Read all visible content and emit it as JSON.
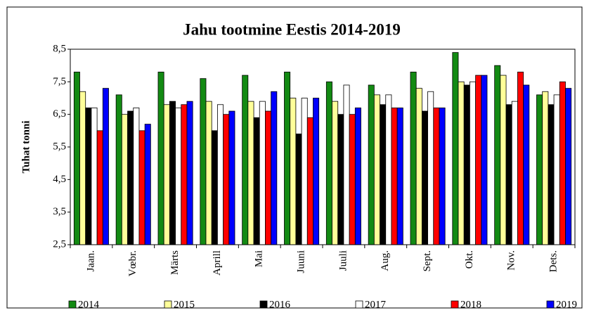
{
  "chart_data": {
    "type": "bar",
    "title": "Jahu tootmine  Eestis 2014-2019",
    "y_label": "Tuhat tonni",
    "categories": [
      "Jaan.",
      "Vœbr.",
      "Märts",
      "Aprill",
      "Mai",
      "Juuni",
      "Juuli",
      "Aug.",
      "Sept.",
      "Okt.",
      "Nov.",
      "Dets."
    ],
    "series": [
      {
        "name": "2014",
        "color": "#138a13",
        "values": [
          7.8,
          7.1,
          7.8,
          7.6,
          7.7,
          7.8,
          7.5,
          7.4,
          7.8,
          8.4,
          8.0,
          7.1
        ]
      },
      {
        "name": "2015",
        "color": "#ffff99",
        "values": [
          7.2,
          6.5,
          6.8,
          6.9,
          6.9,
          7.0,
          6.9,
          7.1,
          7.3,
          7.5,
          7.7,
          7.2
        ]
      },
      {
        "name": "2016",
        "color": "#000000",
        "values": [
          6.7,
          6.6,
          6.9,
          6.0,
          6.4,
          5.9,
          6.5,
          6.8,
          6.6,
          7.4,
          6.8,
          6.8
        ]
      },
      {
        "name": "2017",
        "color": "#ffffff",
        "values": [
          6.7,
          6.7,
          6.7,
          6.8,
          6.9,
          7.0,
          7.4,
          7.1,
          7.2,
          7.5,
          6.9,
          7.1
        ]
      },
      {
        "name": "2018",
        "color": "#ff0000",
        "values": [
          6.0,
          6.0,
          6.8,
          6.5,
          6.6,
          6.4,
          6.5,
          6.7,
          6.7,
          7.7,
          7.8,
          7.5
        ]
      },
      {
        "name": "2019",
        "color": "#0000ff",
        "values": [
          7.3,
          6.2,
          6.9,
          6.6,
          7.2,
          7.0,
          6.7,
          6.7,
          6.7,
          7.7,
          7.4,
          7.3
        ]
      }
    ],
    "ylim": [
      2.5,
      8.5
    ],
    "yticks": [
      {
        "value": 2.5,
        "label": "2,5"
      },
      {
        "value": 3.5,
        "label": "3,5"
      },
      {
        "value": 4.5,
        "label": "4,5"
      },
      {
        "value": 5.5,
        "label": "5,5"
      },
      {
        "value": 6.5,
        "label": "6,5"
      },
      {
        "value": 7.5,
        "label": "7,5"
      },
      {
        "value": 8.5,
        "label": "8,5"
      }
    ],
    "grid": false,
    "legend": "bottom"
  }
}
